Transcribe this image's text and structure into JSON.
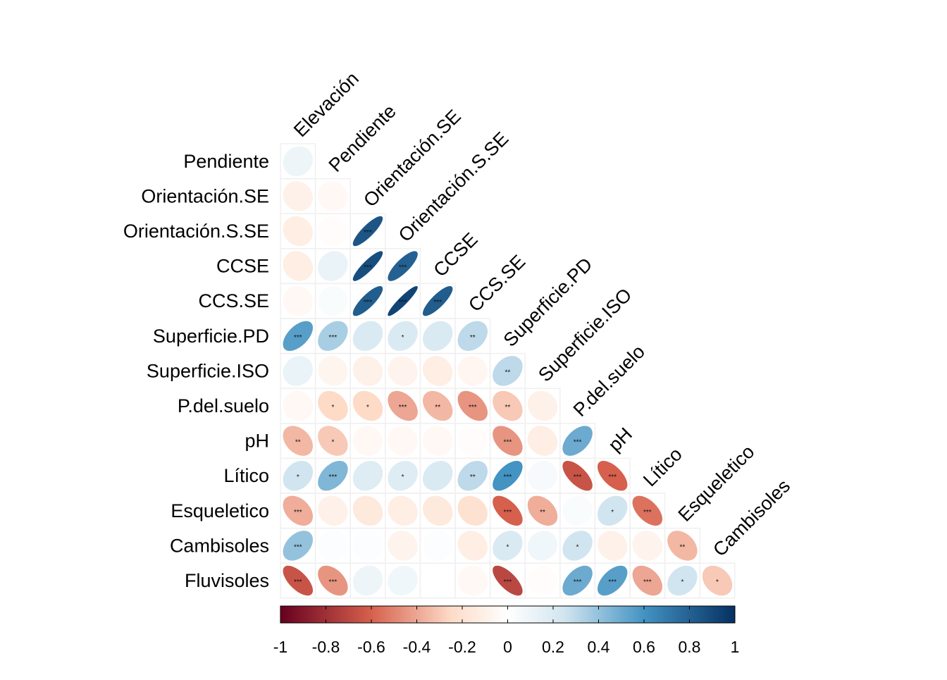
{
  "chart_data": {
    "type": "heatmap",
    "title": "",
    "variables": [
      "Elevación",
      "Pendiente",
      "Orientación.SE",
      "Orientación.S.SE",
      "CCSE",
      "CCS.SE",
      "Superficie.PD",
      "Superficie.ISO",
      "P.del.suelo",
      "pH",
      "Lítico",
      "Esqueletico",
      "Cambisoles",
      "Fluvisoles"
    ],
    "row_labels": [
      "Pendiente",
      "Orientación.SE",
      "Orientación.S.SE",
      "CCSE",
      "CCS.SE",
      "Superficie.PD",
      "Superficie.ISO",
      "P.del.suelo",
      "pH",
      "Lítico",
      "Esqueletico",
      "Cambisoles",
      "Fluvisoles"
    ],
    "col_labels": [
      "Elevación",
      "Pendiente",
      "Orientación.SE",
      "Orientación.S.SE",
      "CCSE",
      "CCS.SE",
      "Superficie.PD",
      "Superficie.ISO",
      "P.del.suelo",
      "pH",
      "Lítico",
      "Esqueletico",
      "Cambisoles"
    ],
    "correlations": [
      [
        0.1
      ],
      [
        -0.1,
        -0.05
      ],
      [
        -0.12,
        -0.02,
        0.85
      ],
      [
        -0.12,
        0.12,
        0.88,
        0.8
      ],
      [
        -0.05,
        0.03,
        0.82,
        0.92,
        0.82
      ],
      [
        0.55,
        0.35,
        0.2,
        0.2,
        0.2,
        0.3
      ],
      [
        0.12,
        -0.07,
        -0.1,
        -0.08,
        -0.12,
        -0.06,
        0.3
      ],
      [
        -0.05,
        -0.25,
        -0.25,
        -0.4,
        -0.35,
        -0.45,
        -0.3,
        -0.1
      ],
      [
        -0.35,
        -0.3,
        -0.05,
        -0.05,
        -0.05,
        -0.02,
        -0.45,
        -0.12,
        0.5
      ],
      [
        0.25,
        0.45,
        0.18,
        0.18,
        0.2,
        0.3,
        0.6,
        0.05,
        -0.65,
        -0.6
      ],
      [
        -0.38,
        -0.1,
        -0.15,
        -0.12,
        -0.15,
        -0.2,
        -0.6,
        -0.38,
        0.03,
        0.25,
        -0.55
      ],
      [
        0.4,
        0.02,
        0.02,
        -0.08,
        0.02,
        -0.12,
        0.2,
        0.08,
        0.25,
        -0.1,
        -0.08,
        -0.35
      ],
      [
        -0.65,
        -0.45,
        0.1,
        0.08,
        0.0,
        -0.05,
        -0.7,
        -0.02,
        0.5,
        0.55,
        -0.4,
        0.25,
        -0.3
      ]
    ],
    "significance": [
      [
        ""
      ],
      [
        "",
        ""
      ],
      [
        "",
        "",
        "***"
      ],
      [
        "",
        "",
        "***",
        "***"
      ],
      [
        "",
        "",
        "***",
        "***",
        "***"
      ],
      [
        "***",
        "***",
        "",
        "*",
        "",
        "**"
      ],
      [
        "",
        "",
        "",
        "",
        "",
        "",
        "**"
      ],
      [
        "",
        "*",
        "*",
        "***",
        "**",
        "***",
        "**",
        ""
      ],
      [
        "**",
        "*",
        "",
        "",
        "",
        "",
        "***",
        "",
        "***"
      ],
      [
        "*",
        "***",
        "",
        "*",
        "",
        "**",
        "***",
        "",
        "***",
        "***"
      ],
      [
        "***",
        "",
        "",
        "",
        "",
        "",
        "***",
        "**",
        "",
        "*",
        "***"
      ],
      [
        "***",
        "",
        "",
        "",
        "",
        "",
        "*",
        "",
        "*",
        "",
        "",
        "**"
      ],
      [
        "***",
        "***",
        "",
        "",
        "",
        "",
        "***",
        "",
        "***",
        "***",
        "***",
        "*",
        "*"
      ]
    ],
    "colorbar": {
      "ticks": [
        "-1",
        "-0.8",
        "-0.6",
        "-0.4",
        "-0.2",
        "0",
        "0.2",
        "0.4",
        "0.6",
        "0.8",
        "1"
      ],
      "range": [
        -1,
        1
      ]
    },
    "colors": {
      "neg_strong": "#67001F",
      "neg_mid": "#D6604D",
      "neg_light": "#FDDBC7",
      "zero": "#FFFFFF",
      "pos_light": "#D1E5F0",
      "pos_mid": "#4393C3",
      "pos_strong": "#053061"
    }
  }
}
